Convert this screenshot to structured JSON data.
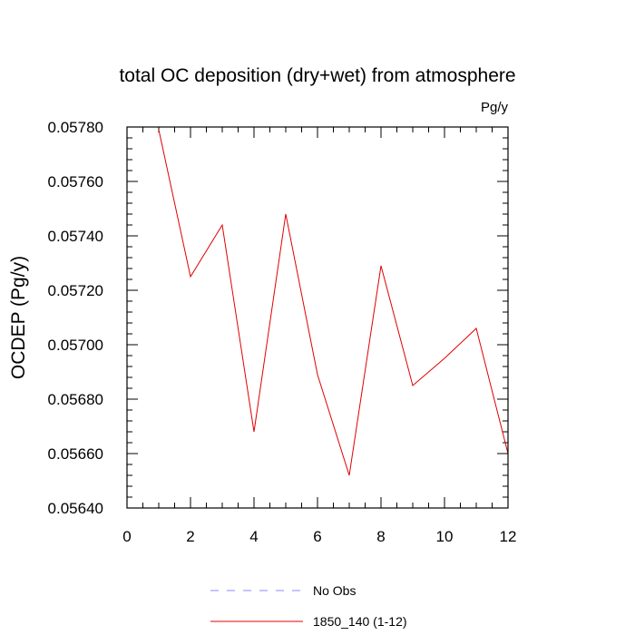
{
  "chart_data": {
    "type": "line",
    "title": "total OC deposition (dry+wet) from atmosphere",
    "units_label": "Pg/y",
    "ylabel": "OCDEP  (Pg/y)",
    "xlabel": "",
    "xlim": [
      0,
      12
    ],
    "ylim": [
      0.0564,
      0.0578
    ],
    "x_ticks": [
      "0",
      "2",
      "4",
      "6",
      "8",
      "10",
      "12"
    ],
    "y_ticks": [
      "0.05640",
      "0.05660",
      "0.05680",
      "0.05700",
      "0.05720",
      "0.05740",
      "0.05760",
      "0.05780"
    ],
    "grid": false,
    "legend_position": "bottom",
    "series": [
      {
        "name": "1850_140 (1-12)",
        "color": "#e00000",
        "style": "solid",
        "x": [
          1,
          2,
          3,
          4,
          5,
          6,
          7,
          8,
          9,
          10,
          11,
          12
        ],
        "values": [
          0.05779,
          0.05725,
          0.05744,
          0.05668,
          0.05748,
          0.05689,
          0.05652,
          0.05729,
          0.05685,
          0.05695,
          0.05706,
          0.0566
        ]
      }
    ],
    "legend": [
      {
        "label": "No Obs",
        "color": "#8888ff",
        "style": "dashed"
      },
      {
        "label": "1850_140 (1-12)",
        "color": "#e00000",
        "style": "solid"
      }
    ]
  }
}
